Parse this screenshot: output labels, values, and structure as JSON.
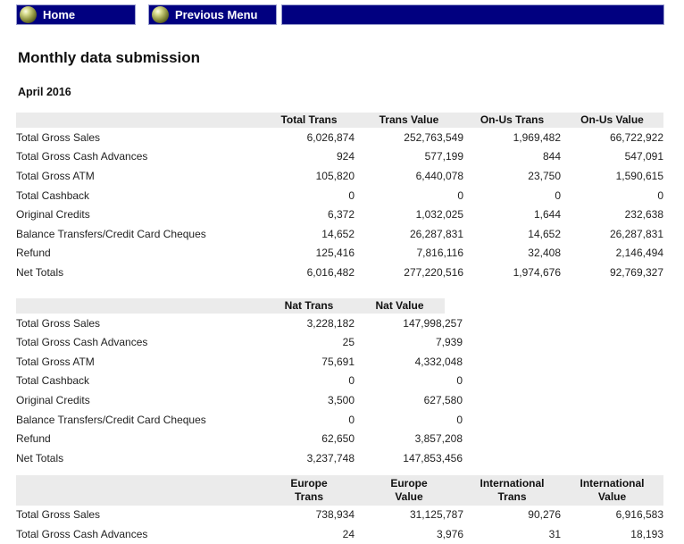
{
  "colors": {
    "navy": "#010080",
    "header_bg": "#ebebeb"
  },
  "nav": {
    "home_label": "Home",
    "previous_label": "Previous Menu"
  },
  "page": {
    "title": "Monthly data submission",
    "period": "April 2016"
  },
  "tables": {
    "totals": {
      "columns": [
        "Total Trans",
        "Trans Value",
        "On-Us Trans",
        "On-Us Value"
      ],
      "rows": [
        {
          "label": "Total Gross Sales",
          "values": [
            "6,026,874",
            "252,763,549",
            "1,969,482",
            "66,722,922"
          ]
        },
        {
          "label": "Total Gross Cash Advances",
          "values": [
            "924",
            "577,199",
            "844",
            "547,091"
          ]
        },
        {
          "label": "Total Gross ATM",
          "values": [
            "105,820",
            "6,440,078",
            "23,750",
            "1,590,615"
          ]
        },
        {
          "label": "Total Cashback",
          "values": [
            "0",
            "0",
            "0",
            "0"
          ]
        },
        {
          "label": "Original Credits",
          "values": [
            "6,372",
            "1,032,025",
            "1,644",
            "232,638"
          ]
        },
        {
          "label": "Balance Transfers/Credit Card Cheques",
          "values": [
            "14,652",
            "26,287,831",
            "14,652",
            "26,287,831"
          ]
        },
        {
          "label": "Refund",
          "values": [
            "125,416",
            "7,816,116",
            "32,408",
            "2,146,494"
          ]
        },
        {
          "label": "Net Totals",
          "values": [
            "6,016,482",
            "277,220,516",
            "1,974,676",
            "92,769,327"
          ]
        }
      ]
    },
    "national": {
      "columns": [
        "Nat Trans",
        "Nat Value"
      ],
      "rows": [
        {
          "label": "Total Gross Sales",
          "values": [
            "3,228,182",
            "147,998,257"
          ]
        },
        {
          "label": "Total Gross Cash Advances",
          "values": [
            "25",
            "7,939"
          ]
        },
        {
          "label": "Total Gross ATM",
          "values": [
            "75,691",
            "4,332,048"
          ]
        },
        {
          "label": "Total Cashback",
          "values": [
            "0",
            "0"
          ]
        },
        {
          "label": "Original Credits",
          "values": [
            "3,500",
            "627,580"
          ]
        },
        {
          "label": "Balance Transfers/Credit Card Cheques",
          "values": [
            "0",
            "0"
          ]
        },
        {
          "label": "Refund",
          "values": [
            "62,650",
            "3,857,208"
          ]
        },
        {
          "label": "Net Totals",
          "values": [
            "3,237,748",
            "147,853,456"
          ]
        }
      ]
    },
    "regions": {
      "columns": [
        "Europe\nTrans",
        "Europe\nValue",
        "International\nTrans",
        "International\nValue"
      ],
      "rows": [
        {
          "label": "Total Gross Sales",
          "values": [
            "738,934",
            "31,125,787",
            "90,276",
            "6,916,583"
          ]
        },
        {
          "label": "Total Gross Cash Advances",
          "values": [
            "24",
            "3,976",
            "31",
            "18,193"
          ]
        }
      ]
    }
  }
}
